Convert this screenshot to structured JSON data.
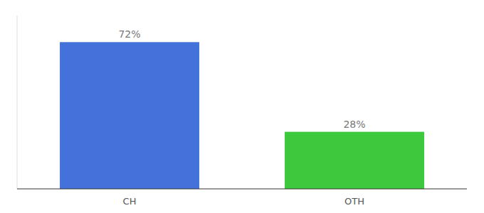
{
  "chart_data": {
    "type": "bar",
    "categories": [
      "CH",
      "OTH"
    ],
    "values": [
      72,
      28
    ],
    "value_labels": [
      "72%",
      "28%"
    ],
    "colors": [
      "#4472db",
      "#3dc93d"
    ],
    "ylim": [
      0,
      85
    ],
    "data_labels": true,
    "tick_labels": "x"
  }
}
